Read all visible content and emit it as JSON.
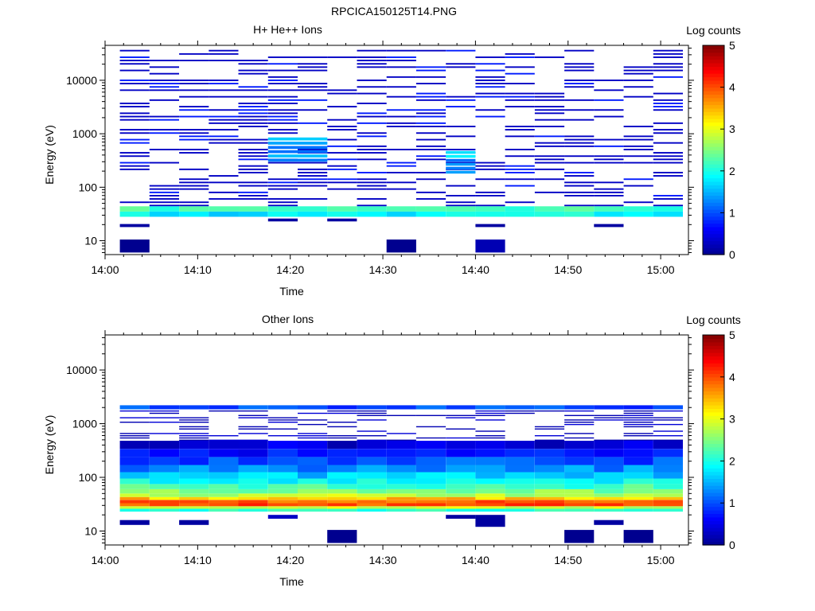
{
  "figure_title": "RPCICA150125T14.PNG",
  "colors": {
    "colormap": [
      "#00008f",
      "#0000ff",
      "#0080ff",
      "#00ffff",
      "#80ff80",
      "#ffff00",
      "#ff8000",
      "#ff0000",
      "#800000"
    ]
  },
  "chart_data": [
    {
      "type": "heatmap",
      "title": "H+ He++ Ions",
      "xlabel": "Time",
      "ylabel": "Energy (eV)",
      "colorbar_label": "Log counts",
      "xticks": [
        "14:00",
        "14:10",
        "14:20",
        "14:30",
        "14:40",
        "14:50",
        "15:00"
      ],
      "xlim_minutes": [
        0,
        63
      ],
      "y_scale": "log",
      "yticks": [
        "10",
        "100",
        "1000",
        "10000"
      ],
      "ylim_eV": [
        5.5,
        45000
      ],
      "clim": [
        0,
        5
      ],
      "colorbar_ticks": [
        "0",
        "1",
        "2",
        "3",
        "4",
        "5"
      ],
      "time_bins_minutes": [
        1.6,
        4.8,
        8.0,
        11.2,
        14.4,
        17.6,
        20.8,
        24.0,
        27.2,
        30.4,
        33.6,
        36.8,
        40.0,
        43.2,
        46.4,
        49.6,
        52.8,
        56.0,
        59.2
      ],
      "dominant_band": {
        "energy_eV": [
          28,
          44
        ],
        "log_counts": 1.8,
        "peak_log_counts": 2.3
      },
      "scattered_hits": {
        "energy_eV": [
          44,
          40000
        ],
        "log_counts": 0.3,
        "description_of_activity": "sporadic single counts"
      },
      "enhancements": [
        {
          "start_min": 17.6,
          "end_min": 24.0,
          "energy_eV": [
            300,
            900
          ],
          "log_counts": 1.7
        },
        {
          "start_min": 36.8,
          "end_min": 40.0,
          "energy_eV": [
            180,
            500
          ],
          "log_counts": 1.9
        }
      ],
      "low_energy_hits": [
        {
          "start_min": 1.6,
          "end_min": 4.8,
          "energy_eV": [
            6,
            10.5
          ],
          "log_counts": 0.0
        },
        {
          "start_min": 30.4,
          "end_min": 33.6,
          "energy_eV": [
            6,
            10.5
          ],
          "log_counts": 0.0
        },
        {
          "start_min": 40.0,
          "end_min": 43.2,
          "energy_eV": [
            6,
            10.5
          ],
          "log_counts": 0.2
        }
      ]
    },
    {
      "type": "heatmap",
      "title": "Other Ions",
      "xlabel": "Time",
      "ylabel": "Energy (eV)",
      "colorbar_label": "Log counts",
      "xticks": [
        "14:00",
        "14:10",
        "14:20",
        "14:30",
        "14:40",
        "14:50",
        "15:00"
      ],
      "xlim_minutes": [
        0,
        63
      ],
      "y_scale": "log",
      "yticks": [
        "10",
        "100",
        "1000",
        "10000"
      ],
      "ylim_eV": [
        5.5,
        45000
      ],
      "clim": [
        0,
        5
      ],
      "colorbar_ticks": [
        "0",
        "1",
        "2",
        "3",
        "4",
        "5"
      ],
      "time_bins_minutes": [
        1.6,
        4.8,
        8.0,
        11.2,
        14.4,
        17.6,
        20.8,
        24.0,
        27.2,
        30.4,
        33.6,
        36.8,
        40.0,
        43.2,
        46.4,
        49.6,
        52.8,
        56.0,
        59.2
      ],
      "energy_profile": [
        {
          "energy_eV": [
            23,
            26
          ],
          "log_counts": 2.0
        },
        {
          "energy_eV": [
            26,
            29
          ],
          "log_counts": 2.9
        },
        {
          "energy_eV": [
            29,
            33
          ],
          "log_counts": 4.0
        },
        {
          "energy_eV": [
            33,
            38
          ],
          "log_counts": 3.9
        },
        {
          "energy_eV": [
            38,
            43
          ],
          "log_counts": 3.4
        },
        {
          "energy_eV": [
            43,
            50
          ],
          "log_counts": 2.8
        },
        {
          "energy_eV": [
            50,
            60
          ],
          "log_counts": 2.5
        },
        {
          "energy_eV": [
            60,
            75
          ],
          "log_counts": 2.2
        },
        {
          "energy_eV": [
            75,
            95
          ],
          "log_counts": 1.9
        },
        {
          "energy_eV": [
            95,
            125
          ],
          "log_counts": 1.6
        },
        {
          "energy_eV": [
            125,
            170
          ],
          "log_counts": 1.3
        },
        {
          "energy_eV": [
            170,
            240
          ],
          "log_counts": 1.0
        },
        {
          "energy_eV": [
            240,
            340
          ],
          "log_counts": 0.7
        },
        {
          "energy_eV": [
            340,
            480
          ],
          "log_counts": 0.4
        }
      ],
      "upper_band": {
        "energy_eV": [
          1850,
          2200
        ],
        "log_counts": 1.0
      },
      "sparse_hits": {
        "energy_eV": [
          480,
          1850
        ],
        "log_counts": 0.2
      },
      "low_energy_hits": [
        {
          "start_min": 1.6,
          "end_min": 4.8,
          "energy_eV": [
            13,
            16
          ],
          "log_counts": 0.1
        },
        {
          "start_min": 8.0,
          "end_min": 11.2,
          "energy_eV": [
            13,
            16
          ],
          "log_counts": 0.1
        },
        {
          "start_min": 17.6,
          "end_min": 20.8,
          "energy_eV": [
            17,
            20
          ],
          "log_counts": 0.3
        },
        {
          "start_min": 24.0,
          "end_min": 27.2,
          "energy_eV": [
            6,
            10.5
          ],
          "log_counts": 0.0
        },
        {
          "start_min": 36.8,
          "end_min": 40.0,
          "energy_eV": [
            17,
            20
          ],
          "log_counts": 0.1
        },
        {
          "start_min": 40.0,
          "end_min": 43.2,
          "energy_eV": [
            12,
            20
          ],
          "log_counts": 0.1
        },
        {
          "start_min": 49.6,
          "end_min": 52.8,
          "energy_eV": [
            6,
            10.5
          ],
          "log_counts": 0.0
        },
        {
          "start_min": 52.8,
          "end_min": 56.0,
          "energy_eV": [
            13,
            16
          ],
          "log_counts": 0.1
        },
        {
          "start_min": 56.0,
          "end_min": 59.2,
          "energy_eV": [
            6,
            10.5
          ],
          "log_counts": 0.0
        }
      ]
    }
  ]
}
